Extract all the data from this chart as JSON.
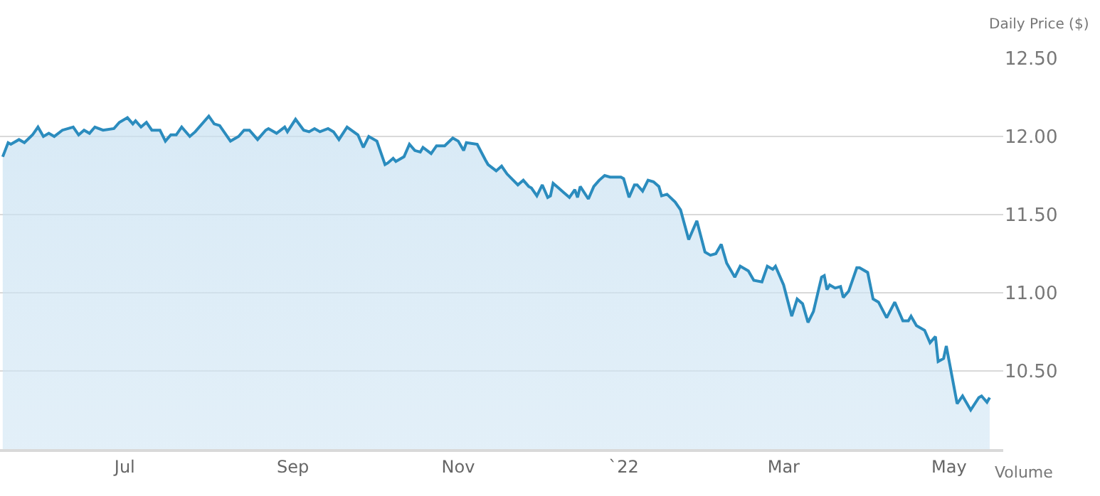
{
  "chart_data": {
    "type": "area",
    "ylabel": "Daily Price ($)",
    "annotations": [
      "Volume"
    ],
    "x": [
      "2021-05-17",
      "2021-05-19",
      "2021-05-20",
      "2021-05-23",
      "2021-05-25",
      "2021-05-28",
      "2021-05-30",
      "2021-06-01",
      "2021-06-03",
      "2021-06-05",
      "2021-06-08",
      "2021-06-12",
      "2021-06-14",
      "2021-06-16",
      "2021-06-18",
      "2021-06-20",
      "2021-06-23",
      "2021-06-27",
      "2021-06-29",
      "2021-07-02",
      "2021-07-04",
      "2021-07-05",
      "2021-07-07",
      "2021-07-09",
      "2021-07-11",
      "2021-07-14",
      "2021-07-16",
      "2021-07-18",
      "2021-07-20",
      "2021-07-22",
      "2021-07-25",
      "2021-07-27",
      "2021-08-01",
      "2021-08-03",
      "2021-08-05",
      "2021-08-09",
      "2021-08-12",
      "2021-08-14",
      "2021-08-16",
      "2021-08-19",
      "2021-08-22",
      "2021-08-23",
      "2021-08-26",
      "2021-08-29",
      "2021-08-30",
      "2021-09-02",
      "2021-09-05",
      "2021-09-07",
      "2021-09-09",
      "2021-09-11",
      "2021-09-14",
      "2021-09-16",
      "2021-09-18",
      "2021-09-21",
      "2021-09-25",
      "2021-09-27",
      "2021-09-29",
      "2021-10-02",
      "2021-10-05",
      "2021-10-06",
      "2021-10-08",
      "2021-10-09",
      "2021-10-12",
      "2021-10-14",
      "2021-10-16",
      "2021-10-18",
      "2021-10-19",
      "2021-10-22",
      "2021-10-24",
      "2021-10-27",
      "2021-10-30",
      "2021-11-01",
      "2021-11-03",
      "2021-11-04",
      "2021-11-08",
      "2021-11-11",
      "2021-11-12",
      "2021-11-15",
      "2021-11-17",
      "2021-11-19",
      "2021-11-23",
      "2021-11-25",
      "2021-11-27",
      "2021-11-28",
      "2021-11-30",
      "2021-12-02",
      "2021-12-04",
      "2021-12-05",
      "2021-12-06",
      "2021-12-08",
      "2021-12-10",
      "2021-12-12",
      "2021-12-14",
      "2021-12-15",
      "2021-12-16",
      "2021-12-19",
      "2021-12-21",
      "2021-12-23",
      "2021-12-25",
      "2021-12-27",
      "2021-12-31",
      "2022-01-01",
      "2022-01-03",
      "2022-01-05",
      "2022-01-06",
      "2022-01-08",
      "2022-01-10",
      "2022-01-12",
      "2022-01-14",
      "2022-01-15",
      "2022-01-17",
      "2022-01-20",
      "2022-01-22",
      "2022-01-25",
      "2022-01-28",
      "2022-01-31",
      "2022-02-02",
      "2022-02-04",
      "2022-02-06",
      "2022-02-08",
      "2022-02-11",
      "2022-02-13",
      "2022-02-16",
      "2022-02-18",
      "2022-02-21",
      "2022-02-23",
      "2022-02-25",
      "2022-02-26",
      "2022-03-01",
      "2022-03-04",
      "2022-03-06",
      "2022-03-08",
      "2022-03-10",
      "2022-03-12",
      "2022-03-15",
      "2022-03-16",
      "2022-03-17",
      "2022-03-18",
      "2022-03-20",
      "2022-03-22",
      "2022-03-23",
      "2022-03-25",
      "2022-03-28",
      "2022-03-29",
      "2022-04-01",
      "2022-04-03",
      "2022-04-05",
      "2022-04-08",
      "2022-04-11",
      "2022-04-14",
      "2022-04-16",
      "2022-04-17",
      "2022-04-19",
      "2022-04-22",
      "2022-04-24",
      "2022-04-26",
      "2022-04-27",
      "2022-04-29",
      "2022-04-30",
      "2022-05-04",
      "2022-05-06",
      "2022-05-09",
      "2022-05-12",
      "2022-05-13",
      "2022-05-15",
      "2022-05-16"
    ],
    "series": [
      {
        "color": "#2b8cbe",
        "values": [
          11.87,
          11.96,
          11.95,
          11.98,
          11.96,
          12.01,
          12.06,
          12.0,
          12.02,
          12.0,
          12.04,
          12.06,
          12.01,
          12.04,
          12.02,
          12.06,
          12.04,
          12.05,
          12.09,
          12.12,
          12.08,
          12.1,
          12.06,
          12.09,
          12.04,
          12.04,
          11.97,
          12.01,
          12.01,
          12.06,
          12.0,
          12.03,
          12.13,
          12.08,
          12.07,
          11.97,
          12.0,
          12.04,
          12.04,
          11.98,
          12.04,
          12.05,
          12.02,
          12.06,
          12.03,
          12.11,
          12.04,
          12.03,
          12.05,
          12.03,
          12.05,
          12.03,
          11.98,
          12.06,
          12.01,
          11.93,
          12.0,
          11.97,
          11.82,
          11.83,
          11.86,
          11.84,
          11.87,
          11.95,
          11.91,
          11.9,
          11.93,
          11.89,
          11.94,
          11.94,
          11.99,
          11.97,
          11.91,
          11.96,
          11.95,
          11.85,
          11.82,
          11.78,
          11.81,
          11.76,
          11.69,
          11.72,
          11.68,
          11.67,
          11.62,
          11.69,
          11.61,
          11.62,
          11.7,
          11.67,
          11.64,
          11.61,
          11.66,
          11.61,
          11.68,
          11.6,
          11.68,
          11.72,
          11.75,
          11.74,
          11.74,
          11.73,
          11.61,
          11.69,
          11.69,
          11.65,
          11.72,
          11.71,
          11.68,
          11.62,
          11.63,
          11.58,
          11.53,
          11.34,
          11.46,
          11.26,
          11.24,
          11.25,
          11.31,
          11.19,
          11.1,
          11.17,
          11.14,
          11.08,
          11.07,
          11.17,
          11.15,
          11.17,
          11.05,
          10.85,
          10.96,
          10.93,
          10.81,
          10.88,
          11.1,
          11.11,
          11.02,
          11.05,
          11.03,
          11.04,
          10.97,
          11.01,
          11.16,
          11.16,
          11.13,
          10.96,
          10.94,
          10.84,
          10.94,
          10.82,
          10.82,
          10.85,
          10.79,
          10.76,
          10.68,
          10.72,
          10.56,
          10.58,
          10.66,
          10.29,
          10.34,
          10.25,
          10.33,
          10.34,
          10.3,
          10.33
        ]
      }
    ],
    "xlim": [
      "2021-05-16",
      "2022-05-21"
    ],
    "xticks": [
      {
        "value": "2021-07-01",
        "label": "Jul"
      },
      {
        "value": "2021-09-01",
        "label": "Sep"
      },
      {
        "value": "2021-11-01",
        "label": "Nov"
      },
      {
        "value": "2022-01-01",
        "label": "`22"
      },
      {
        "value": "2022-03-01",
        "label": "Mar"
      },
      {
        "value": "2022-05-01",
        "label": "May"
      }
    ],
    "ylim": [
      10.0,
      12.5
    ],
    "yticks": [
      {
        "value": 10.0,
        "label": null
      },
      {
        "value": 10.5,
        "label": "10.50"
      },
      {
        "value": 11.0,
        "label": "11.00"
      },
      {
        "value": 11.5,
        "label": "11.50"
      },
      {
        "value": 12.0,
        "label": "12.00"
      },
      {
        "value": 12.5,
        "label": "12.50"
      }
    ],
    "grid": "y"
  }
}
